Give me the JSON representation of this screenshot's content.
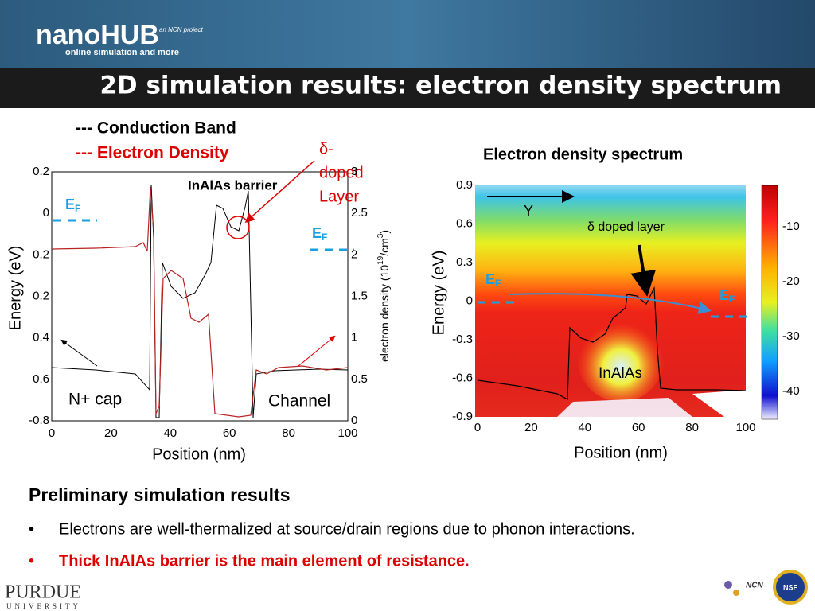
{
  "header": {
    "logo": "nanoHUB",
    "logo_note": "an NCN project",
    "tagline": "online simulation and more",
    "title": "2D simulation results: electron density spectrum"
  },
  "left_figure": {
    "legend": [
      "--- Conduction Band",
      "--- Electron Density"
    ],
    "annotation_barrier": "InAlAs barrier",
    "annotation_delta": [
      "δ-",
      "doped",
      "Layer"
    ],
    "fermi_left": {
      "main": "E",
      "sub": "F"
    },
    "fermi_right": {
      "main": "E",
      "sub": "F"
    },
    "region_left": "N+ cap",
    "region_right": "Channel",
    "y_label": "Energy (eV)",
    "y2_label": [
      "electron density (10",
      "19",
      "/cm",
      "3",
      ")"
    ],
    "x_label": "Position (nm)",
    "yticks": [
      "0.2",
      "0",
      "0.2",
      "0.2",
      "0.4",
      "0.6",
      "-0.8"
    ],
    "y2ticks": [
      "3",
      "2.5",
      "2",
      "1.5",
      "1",
      "0.5",
      "0"
    ],
    "xticks": [
      "0",
      "20",
      "40",
      "60",
      "80",
      "100"
    ]
  },
  "right_figure": {
    "title": "Electron density spectrum",
    "arrow_label": "Y",
    "annotation": "δ doped layer",
    "fermi_left": {
      "main": "E",
      "sub": "F"
    },
    "fermi_right": {
      "main": "E",
      "sub": "F"
    },
    "region": "InAlAs",
    "y_label": "Energy (eV)",
    "x_label": "Position (nm)",
    "yticks": [
      "0.9",
      "0.6",
      "0.3",
      "0",
      "-0.3",
      "-0.6",
      "-0.9"
    ],
    "xticks": [
      "0",
      "20",
      "40",
      "60",
      "80",
      "100"
    ],
    "colorbar_ticks": [
      "-10",
      "-20",
      "-30",
      "-40"
    ]
  },
  "notes": {
    "heading": "Preliminary simulation results",
    "bullets": [
      "Electrons are well-thermalized at source/drain regions due to phonon interactions.",
      "Thick InAlAs barrier is the main element of resistance."
    ]
  },
  "footer": {
    "university": "PURDUE",
    "university_sub": "UNIVERSITY",
    "ncn": "NCN",
    "nsf": "NSF"
  }
}
